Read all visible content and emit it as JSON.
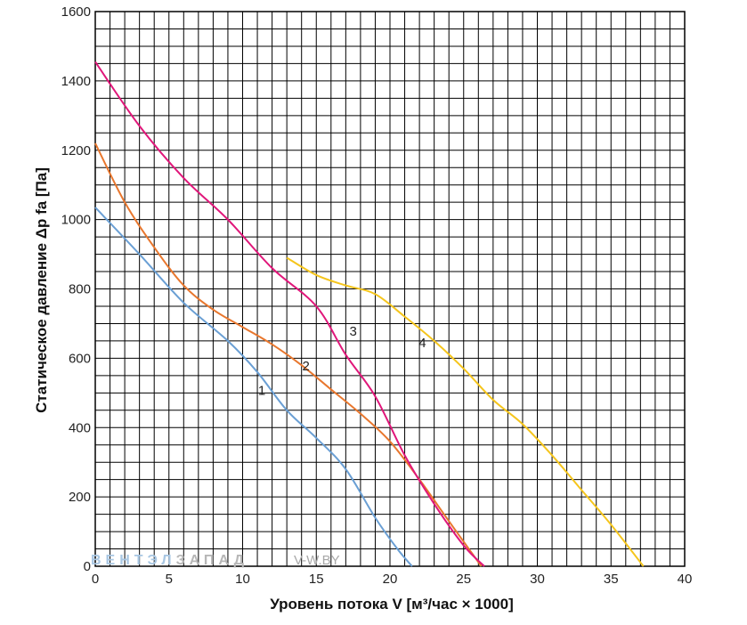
{
  "chart_data": {
    "type": "line",
    "title": "",
    "xlabel": "Уровень потока V [м³/час × 1000]",
    "ylabel": "Статическое давление Δp fa [Па]",
    "xlim": [
      0,
      40
    ],
    "ylim": [
      0,
      1600
    ],
    "x_ticks": [
      "0",
      "5",
      "10",
      "15",
      "20",
      "25",
      "30",
      "35",
      "40"
    ],
    "y_ticks": [
      "0",
      "200",
      "400",
      "600",
      "800",
      "1000",
      "1200",
      "1400",
      "1600"
    ],
    "grid": true,
    "series": [
      {
        "name": "1",
        "color": "#6a9fd4",
        "points": [
          [
            0,
            1035
          ],
          [
            3,
            900
          ],
          [
            6,
            760
          ],
          [
            9,
            650
          ],
          [
            11,
            560
          ],
          [
            13,
            450
          ],
          [
            15,
            370
          ],
          [
            17,
            280
          ],
          [
            19,
            140
          ],
          [
            20.5,
            50
          ],
          [
            21.5,
            0
          ]
        ]
      },
      {
        "name": "2",
        "color": "#e8772e",
        "points": [
          [
            0,
            1220
          ],
          [
            2,
            1050
          ],
          [
            4,
            920
          ],
          [
            6,
            810
          ],
          [
            8,
            740
          ],
          [
            10,
            690
          ],
          [
            12,
            640
          ],
          [
            14,
            580
          ],
          [
            16,
            510
          ],
          [
            18,
            440
          ],
          [
            20,
            360
          ],
          [
            22,
            250
          ],
          [
            24,
            130
          ],
          [
            26.2,
            0
          ]
        ]
      },
      {
        "name": "3",
        "color": "#e0177a",
        "points": [
          [
            0,
            1455
          ],
          [
            3,
            1270
          ],
          [
            6,
            1120
          ],
          [
            9,
            1000
          ],
          [
            12,
            860
          ],
          [
            15,
            750
          ],
          [
            17,
            610
          ],
          [
            19,
            490
          ],
          [
            21,
            320
          ],
          [
            23,
            180
          ],
          [
            25,
            60
          ],
          [
            26.4,
            0
          ]
        ]
      },
      {
        "name": "4",
        "color": "#f5c51c",
        "points": [
          [
            13,
            890
          ],
          [
            15,
            840
          ],
          [
            17,
            810
          ],
          [
            19,
            785
          ],
          [
            21,
            720
          ],
          [
            23,
            650
          ],
          [
            25,
            570
          ],
          [
            27,
            480
          ],
          [
            29,
            410
          ],
          [
            31,
            320
          ],
          [
            33,
            220
          ],
          [
            35,
            120
          ],
          [
            37.2,
            0
          ]
        ]
      }
    ],
    "curve_labels": [
      "1",
      "2",
      "3",
      "4"
    ]
  },
  "watermark": {
    "brand_part1": "ВЕНТЭЛ",
    "brand_part2": "ЗАПАД",
    "site": "V-W.BY"
  }
}
